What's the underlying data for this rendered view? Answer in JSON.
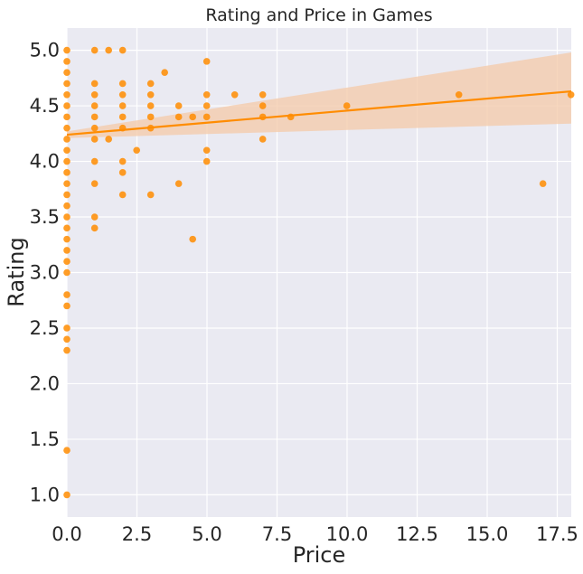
{
  "chart_data": {
    "type": "scatter",
    "title": "Rating and Price in Games",
    "xlabel": "Price",
    "ylabel": "Rating",
    "xlim": [
      0,
      18
    ],
    "ylim": [
      0.8,
      5.2
    ],
    "x_ticks": [
      "0.0",
      "2.5",
      "5.0",
      "7.5",
      "10.0",
      "12.5",
      "15.0",
      "17.5"
    ],
    "x_tick_values": [
      0,
      2.5,
      5,
      7.5,
      10,
      12.5,
      15,
      17.5
    ],
    "y_ticks": [
      "1.0",
      "1.5",
      "2.0",
      "2.5",
      "3.0",
      "3.5",
      "4.0",
      "4.5",
      "5.0"
    ],
    "y_tick_values": [
      1.0,
      1.5,
      2.0,
      2.5,
      3.0,
      3.5,
      4.0,
      4.5,
      5.0
    ],
    "grid": true,
    "colors": {
      "points": "#ff8c00",
      "line": "#ff8c00",
      "band": "#f4c9a8",
      "background": "#eaeaf2",
      "grid": "#ffffff"
    },
    "points": [
      [
        0,
        5.0
      ],
      [
        0,
        4.9
      ],
      [
        0,
        4.8
      ],
      [
        0,
        4.7
      ],
      [
        0,
        4.6
      ],
      [
        0,
        4.5
      ],
      [
        0,
        4.4
      ],
      [
        0,
        4.3
      ],
      [
        0,
        4.2
      ],
      [
        0,
        4.1
      ],
      [
        0,
        4.0
      ],
      [
        0,
        3.9
      ],
      [
        0,
        3.8
      ],
      [
        0,
        3.7
      ],
      [
        0,
        3.6
      ],
      [
        0,
        3.5
      ],
      [
        0,
        3.4
      ],
      [
        0,
        3.3
      ],
      [
        0,
        3.2
      ],
      [
        0,
        3.1
      ],
      [
        0,
        3.0
      ],
      [
        0,
        2.8
      ],
      [
        0,
        2.7
      ],
      [
        0,
        2.5
      ],
      [
        0,
        2.4
      ],
      [
        0,
        2.3
      ],
      [
        0,
        1.4
      ],
      [
        0,
        1.0
      ],
      [
        0.99,
        5.0
      ],
      [
        0.99,
        4.7
      ],
      [
        0.99,
        4.6
      ],
      [
        0.99,
        4.5
      ],
      [
        0.99,
        4.4
      ],
      [
        0.99,
        4.3
      ],
      [
        0.99,
        4.2
      ],
      [
        0.99,
        4.0
      ],
      [
        0.99,
        3.8
      ],
      [
        0.99,
        3.5
      ],
      [
        0.99,
        3.4
      ],
      [
        1.49,
        5.0
      ],
      [
        1.49,
        4.2
      ],
      [
        1.99,
        5.0
      ],
      [
        1.99,
        4.7
      ],
      [
        1.99,
        4.6
      ],
      [
        1.99,
        4.5
      ],
      [
        1.99,
        4.4
      ],
      [
        1.99,
        4.3
      ],
      [
        1.99,
        4.0
      ],
      [
        1.99,
        3.9
      ],
      [
        1.99,
        3.7
      ],
      [
        2.49,
        4.1
      ],
      [
        2.99,
        4.7
      ],
      [
        2.99,
        4.6
      ],
      [
        2.99,
        4.5
      ],
      [
        2.99,
        4.4
      ],
      [
        2.99,
        4.3
      ],
      [
        2.99,
        3.7
      ],
      [
        3.49,
        4.8
      ],
      [
        3.99,
        4.5
      ],
      [
        3.99,
        4.4
      ],
      [
        3.99,
        3.8
      ],
      [
        4.49,
        4.4
      ],
      [
        4.49,
        3.3
      ],
      [
        4.99,
        4.9
      ],
      [
        4.99,
        4.6
      ],
      [
        4.99,
        4.5
      ],
      [
        4.99,
        4.4
      ],
      [
        4.99,
        4.1
      ],
      [
        4.99,
        4.0
      ],
      [
        5.99,
        4.6
      ],
      [
        6.99,
        4.6
      ],
      [
        6.99,
        4.5
      ],
      [
        6.99,
        4.4
      ],
      [
        6.99,
        4.2
      ],
      [
        7.99,
        4.4
      ],
      [
        9.99,
        4.5
      ],
      [
        13.99,
        4.6
      ],
      [
        16.99,
        3.8
      ],
      [
        17.99,
        4.6
      ]
    ],
    "regression": {
      "x": [
        0,
        18
      ],
      "y": [
        4.24,
        4.63
      ],
      "ci_lower": [
        4.21,
        4.34
      ],
      "ci_upper": [
        4.27,
        4.98
      ]
    }
  }
}
